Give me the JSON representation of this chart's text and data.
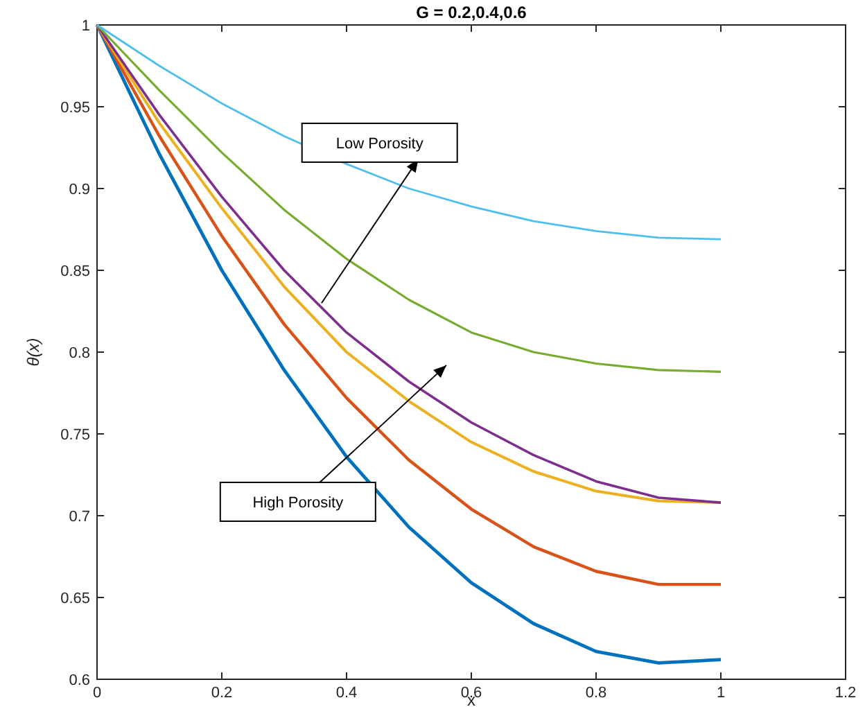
{
  "chart_data": {
    "type": "line",
    "title": "G = 0.2,0.4,0.6",
    "xlabel": "x",
    "ylabel": "θ(x)",
    "x": [
      0,
      0.1,
      0.2,
      0.3,
      0.4,
      0.5,
      0.6,
      0.7,
      0.8,
      0.9,
      1
    ],
    "xlim": [
      0,
      1.2
    ],
    "xticks": [
      0,
      0.2,
      0.4,
      0.6,
      0.8,
      1,
      1.2
    ],
    "ylim": [
      0.6,
      1
    ],
    "yticks": [
      0.6,
      0.65,
      0.7,
      0.75,
      0.8,
      0.85,
      0.9,
      0.95,
      1
    ],
    "grid": false,
    "marker": "none",
    "line_style": "solid",
    "series": [
      {
        "color": "#0072bd",
        "values": [
          1,
          0.921,
          0.85,
          0.789,
          0.736,
          0.693,
          0.659,
          0.634,
          0.617,
          0.61,
          0.612
        ]
      },
      {
        "color": "#d95319",
        "values": [
          1,
          0.932,
          0.871,
          0.817,
          0.772,
          0.734,
          0.704,
          0.681,
          0.666,
          0.658,
          0.658
        ]
      },
      {
        "color": "#edb120",
        "values": [
          1,
          0.94,
          0.888,
          0.84,
          0.8,
          0.77,
          0.745,
          0.727,
          0.715,
          0.709,
          0.708
        ]
      },
      {
        "color": "#7e2f8e",
        "values": [
          1,
          0.945,
          0.895,
          0.85,
          0.812,
          0.782,
          0.757,
          0.737,
          0.721,
          0.711,
          0.708
        ]
      },
      {
        "color": "#77ac30",
        "values": [
          1,
          0.96,
          0.922,
          0.887,
          0.857,
          0.832,
          0.812,
          0.8,
          0.793,
          0.789,
          0.788
        ]
      },
      {
        "color": "#4dbeee",
        "values": [
          1,
          0.975,
          0.952,
          0.932,
          0.915,
          0.9,
          0.889,
          0.88,
          0.874,
          0.87,
          0.869
        ]
      }
    ],
    "annotations": [
      {
        "text": "Low Porosity",
        "x": 0.36,
        "y": 0.83
      },
      "High Porosity"
    ]
  }
}
